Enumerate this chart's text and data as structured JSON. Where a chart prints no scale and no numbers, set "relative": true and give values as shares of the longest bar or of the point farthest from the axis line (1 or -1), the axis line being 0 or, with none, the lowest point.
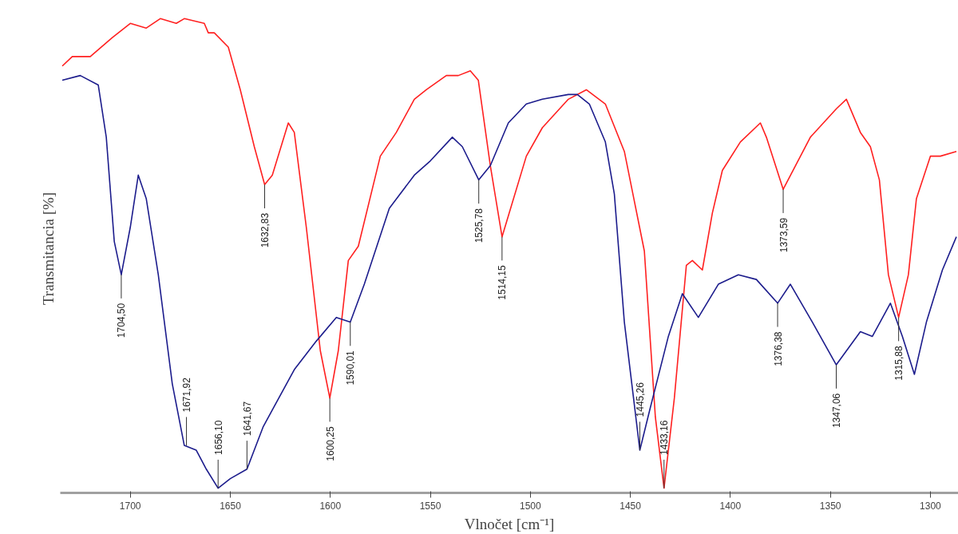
{
  "chart_data": {
    "type": "line",
    "relative": true,
    "xlabel": "Vlnočet [cm⁻¹]",
    "ylabel": "Transmitancia [%]",
    "xlim": [
      1735,
      1286
    ],
    "xticks": [
      1700,
      1650,
      1600,
      1550,
      1500,
      1450,
      1400,
      1350,
      1300
    ],
    "grid": false,
    "marker": "none",
    "line_style": "solid",
    "series": [
      {
        "color": "#ff2020",
        "x": [
          1734,
          1729,
          1725,
          1720,
          1709,
          1700,
          1692,
          1685,
          1677,
          1673,
          1663,
          1661,
          1658,
          1651,
          1645,
          1638,
          1632.83,
          1629,
          1621,
          1618,
          1612,
          1605,
          1600.25,
          1596,
          1591,
          1586,
          1575,
          1567,
          1558,
          1552,
          1542,
          1536,
          1530,
          1526,
          1520,
          1514.15,
          1502,
          1494,
          1481,
          1472,
          1462.5,
          1453,
          1443,
          1437.5,
          1433.16,
          1428,
          1422,
          1419,
          1414,
          1409,
          1404,
          1395,
          1385,
          1382,
          1373.59,
          1360,
          1347,
          1342,
          1335,
          1330,
          1325.5,
          1321,
          1315.88,
          1311,
          1307,
          1300,
          1295,
          1287
        ],
        "values": [
          0.9,
          0.92,
          0.92,
          0.92,
          0.96,
          0.99,
          0.98,
          1.0,
          0.99,
          1.0,
          0.99,
          0.97,
          0.97,
          0.94,
          0.85,
          0.73,
          0.65,
          0.67,
          0.78,
          0.76,
          0.56,
          0.3,
          0.2,
          0.3,
          0.49,
          0.52,
          0.71,
          0.76,
          0.83,
          0.85,
          0.88,
          0.88,
          0.89,
          0.87,
          0.69,
          0.54,
          0.71,
          0.77,
          0.83,
          0.85,
          0.82,
          0.72,
          0.51,
          0.16,
          0.01,
          0.2,
          0.48,
          0.49,
          0.47,
          0.59,
          0.68,
          0.74,
          0.78,
          0.75,
          0.64,
          0.75,
          0.81,
          0.83,
          0.76,
          0.73,
          0.66,
          0.46,
          0.37,
          0.46,
          0.62,
          0.71,
          0.71,
          0.72
        ]
      },
      {
        "color": "#1c1c8c",
        "x": [
          1734,
          1725,
          1716,
          1712,
          1708,
          1704.5,
          1700,
          1696,
          1692,
          1686,
          1679,
          1673,
          1667,
          1662,
          1656.1,
          1650,
          1641.67,
          1633.5,
          1618,
          1607,
          1597,
          1590.01,
          1583,
          1570.5,
          1558,
          1550,
          1539,
          1534,
          1525.78,
          1520,
          1511,
          1502,
          1494,
          1481,
          1476.5,
          1470.5,
          1462.5,
          1458,
          1453,
          1445.26,
          1440,
          1431,
          1424,
          1416,
          1406,
          1396,
          1387,
          1376.38,
          1370,
          1359,
          1347.06,
          1335,
          1329,
          1320,
          1314,
          1308,
          1302,
          1294,
          1287
        ],
        "values": [
          0.87,
          0.88,
          0.86,
          0.75,
          0.53,
          0.46,
          0.56,
          0.67,
          0.62,
          0.46,
          0.23,
          0.1,
          0.09,
          0.05,
          0.01,
          0.03,
          0.05,
          0.14,
          0.26,
          0.32,
          0.37,
          0.36,
          0.44,
          0.6,
          0.67,
          0.7,
          0.75,
          0.73,
          0.66,
          0.69,
          0.78,
          0.82,
          0.83,
          0.84,
          0.84,
          0.82,
          0.74,
          0.63,
          0.36,
          0.09,
          0.18,
          0.33,
          0.42,
          0.37,
          0.44,
          0.46,
          0.45,
          0.4,
          0.44,
          0.36,
          0.27,
          0.34,
          0.33,
          0.4,
          0.33,
          0.25,
          0.36,
          0.47,
          0.54
        ]
      }
    ],
    "annotations": [
      {
        "text": "1704,50",
        "x": 1704.5,
        "y": 0.46
      },
      {
        "text": "1671,92",
        "x": 1671.92,
        "y": 0.1
      },
      {
        "text": "1656,10",
        "x": 1656.1,
        "y": 0.01
      },
      {
        "text": "1641,67",
        "x": 1641.67,
        "y": 0.05
      },
      {
        "text": "1632,83",
        "x": 1632.83,
        "y": 0.65
      },
      {
        "text": "1600,25",
        "x": 1600.25,
        "y": 0.2
      },
      {
        "text": "1590,01",
        "x": 1590.01,
        "y": 0.36
      },
      {
        "text": "1525,78",
        "x": 1525.78,
        "y": 0.66
      },
      {
        "text": "1514,15",
        "x": 1514.15,
        "y": 0.54
      },
      {
        "text": "1445,26",
        "x": 1445.26,
        "y": 0.09
      },
      {
        "text": "1433,16",
        "x": 1433.16,
        "y": 0.01
      },
      {
        "text": "1376,38",
        "x": 1376.38,
        "y": 0.4
      },
      {
        "text": "1373,59",
        "x": 1373.59,
        "y": 0.64
      },
      {
        "text": "1347,06",
        "x": 1347.06,
        "y": 0.27
      },
      {
        "text": "1315,88",
        "x": 1315.88,
        "y": 0.37
      }
    ]
  }
}
